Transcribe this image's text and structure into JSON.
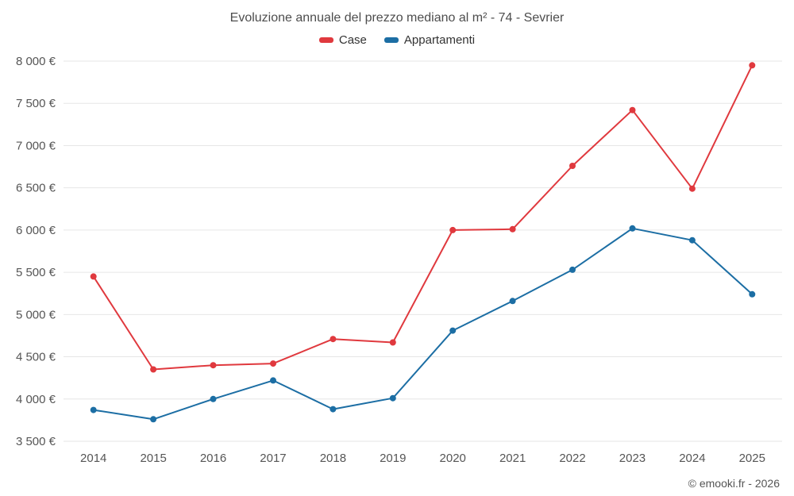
{
  "title": "Evoluzione annuale del prezzo mediano al m² - 74 - Sevrier",
  "footer": "© emooki.fr - 2026",
  "legend": {
    "items": [
      {
        "label": "Case",
        "color": "#e0393e"
      },
      {
        "label": "Appartamenti",
        "color": "#1c6ea4"
      }
    ]
  },
  "chart_data": {
    "type": "line",
    "title": "Evoluzione annuale del prezzo mediano al m² - 74 - Sevrier",
    "categories": [
      "2014",
      "2015",
      "2016",
      "2017",
      "2018",
      "2019",
      "2020",
      "2021",
      "2022",
      "2023",
      "2024",
      "2025"
    ],
    "series": [
      {
        "name": "Case",
        "color": "#e0393e",
        "values": [
          5450,
          4350,
          4400,
          4420,
          4710,
          4670,
          6000,
          6010,
          6760,
          7420,
          6490,
          7950
        ]
      },
      {
        "name": "Appartamenti",
        "color": "#1c6ea4",
        "values": [
          3870,
          3760,
          4000,
          4220,
          3880,
          4010,
          4810,
          5160,
          5530,
          6020,
          5880,
          5240
        ]
      }
    ],
    "ylim": [
      3500,
      8000
    ],
    "ytick_step": 500,
    "ytick_labels": [
      "3 500 €",
      "4 000 €",
      "4 500 €",
      "5 000 €",
      "5 500 €",
      "6 000 €",
      "6 500 €",
      "7 000 €",
      "7 500 €",
      "8 000 €"
    ],
    "xlabel": "",
    "ylabel": "",
    "grid": true,
    "legend_position": "top",
    "marker": "circle",
    "grid_color": "#e6e6e6",
    "axis_label_color": "#555555"
  }
}
